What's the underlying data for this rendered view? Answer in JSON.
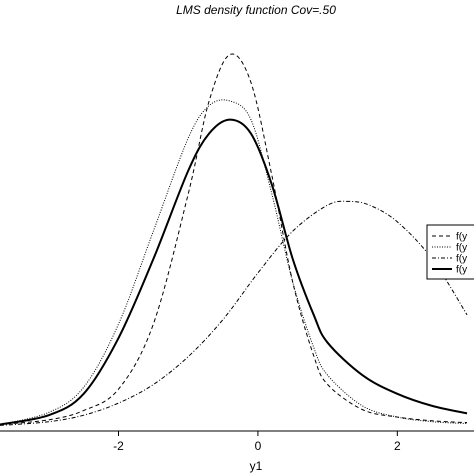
{
  "chart_data": {
    "type": "line",
    "title": "LMS density function Cov=.50",
    "xlabel": "y1",
    "ylabel": "",
    "xlim": [
      -3.7,
      3.1
    ],
    "ylim": [
      -0.005,
      0.435
    ],
    "xticks": [
      -2,
      0,
      2
    ],
    "xtick_labels": [
      "-2",
      "0",
      "2"
    ],
    "grid": false,
    "legend_position": "right",
    "series": [
      {
        "name": "f(y",
        "style": "dashed",
        "x": [
          -3.7,
          -3.0,
          -2.5,
          -2.0,
          -1.5,
          -1.0,
          -0.7,
          -0.4,
          -0.1,
          0.2,
          0.5,
          0.8,
          1.0,
          1.5,
          2.0,
          2.5,
          3.0
        ],
        "y": [
          0.002,
          0.007,
          0.017,
          0.04,
          0.11,
          0.25,
          0.35,
          0.4,
          0.37,
          0.27,
          0.155,
          0.076,
          0.045,
          0.018,
          0.01,
          0.006,
          0.004
        ]
      },
      {
        "name": "f(y",
        "style": "dotted",
        "x": [
          -3.7,
          -3.0,
          -2.5,
          -2.0,
          -1.5,
          -1.0,
          -0.7,
          -0.4,
          -0.1,
          0.2,
          0.5,
          0.8,
          1.0,
          1.5,
          2.0,
          2.5,
          3.0
        ],
        "y": [
          0.002,
          0.015,
          0.042,
          0.11,
          0.21,
          0.31,
          0.345,
          0.35,
          0.33,
          0.25,
          0.155,
          0.085,
          0.055,
          0.022,
          0.01,
          0.005,
          0.003
        ]
      },
      {
        "name": "f(y",
        "style": "dashdot",
        "x": [
          -3.7,
          -3.0,
          -2.5,
          -2.0,
          -1.5,
          -1.0,
          -0.5,
          0.0,
          0.5,
          1.0,
          1.3,
          1.6,
          2.0,
          2.5,
          3.0
        ],
        "y": [
          0.001,
          0.005,
          0.012,
          0.025,
          0.045,
          0.075,
          0.115,
          0.165,
          0.21,
          0.238,
          0.242,
          0.238,
          0.22,
          0.18,
          0.12
        ]
      },
      {
        "name": "f(y",
        "style": "solid",
        "x": [
          -3.7,
          -3.0,
          -2.5,
          -2.0,
          -1.5,
          -1.0,
          -0.7,
          -0.4,
          -0.1,
          0.2,
          0.5,
          0.8,
          1.0,
          1.5,
          2.0,
          2.5,
          3.0
        ],
        "y": [
          0.002,
          0.012,
          0.035,
          0.095,
          0.18,
          0.275,
          0.315,
          0.33,
          0.315,
          0.26,
          0.18,
          0.12,
          0.09,
          0.055,
          0.035,
          0.022,
          0.014
        ]
      }
    ]
  }
}
